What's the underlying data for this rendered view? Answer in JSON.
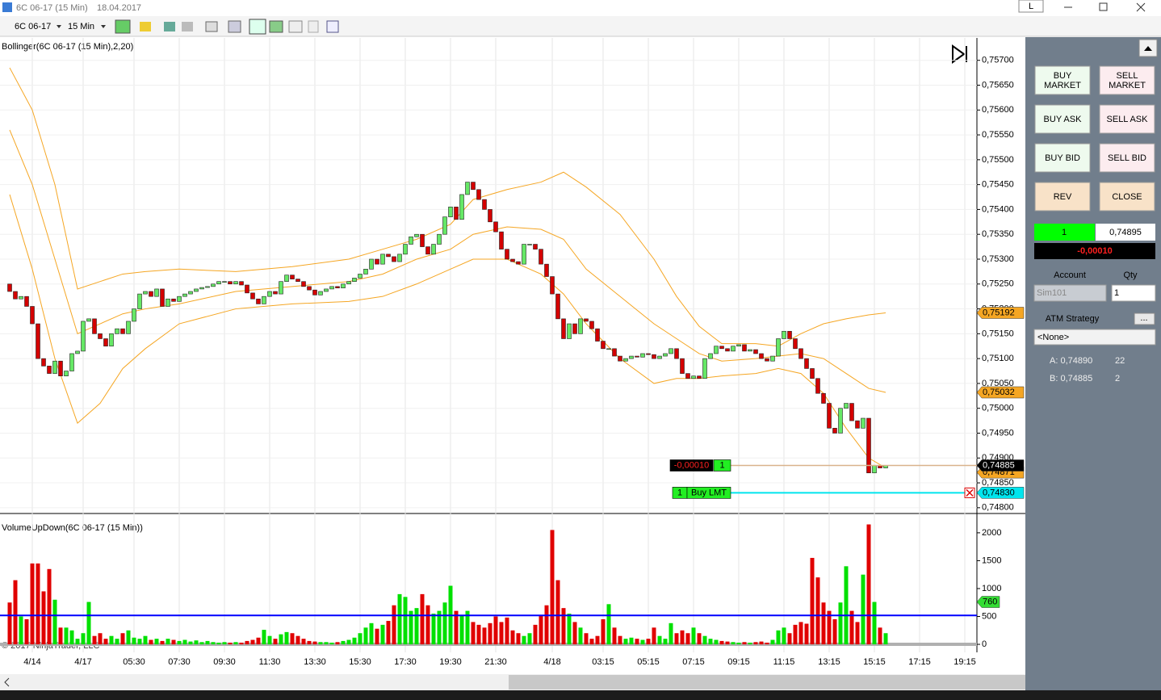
{
  "window": {
    "title": "6C 06-17 (15 Min)",
    "date": "18.04.2017",
    "badge": "L"
  },
  "toolbar": {
    "instrument": "6C 06-17",
    "interval": "15 Min"
  },
  "chart_data": [
    {
      "type": "candlestick",
      "title": "Bollinger(6C 06-17 (15 Min),2,20)",
      "open": [
        0.7525,
        0.75235,
        0.7522,
        0.75225,
        0.75205,
        0.7517,
        0.751,
        0.75085,
        0.7507,
        0.75095,
        0.75065,
        0.75075,
        0.7511,
        0.75115,
        0.75175,
        0.7518,
        0.7515,
        0.7514,
        0.75125,
        0.7515,
        0.7516,
        0.7515,
        0.75175,
        0.752,
        0.7523,
        0.75235,
        0.75225,
        0.7524,
        0.75205,
        0.7522,
        0.75215,
        0.75225,
        0.7523,
        0.75235,
        0.7524,
        0.75243,
        0.75245,
        0.7525,
        0.75255,
        0.75255,
        0.7525,
        0.75255,
        0.75248,
        0.75232,
        0.7522,
        0.7521,
        0.75225,
        0.75235,
        0.7523,
        0.75255,
        0.75268,
        0.7526,
        0.75255,
        0.75245,
        0.75238,
        0.75228,
        0.75235,
        0.7524,
        0.75245,
        0.75242,
        0.7525,
        0.75255,
        0.75262,
        0.7527,
        0.7528,
        0.753,
        0.7529,
        0.7531,
        0.75305,
        0.75295,
        0.7531,
        0.7533,
        0.75345,
        0.7535,
        0.75325,
        0.7531,
        0.7533,
        0.7535,
        0.75385,
        0.75405,
        0.7538,
        0.7543,
        0.75455,
        0.7544,
        0.7542,
        0.754,
        0.75375,
        0.75355,
        0.7532,
        0.753,
        0.75295,
        0.7529,
        0.7533,
        0.7533,
        0.7532,
        0.7529,
        0.75265,
        0.7523,
        0.7518,
        0.7514,
        0.7517,
        0.7515,
        0.7518,
        0.75175,
        0.7516,
        0.75135,
        0.7512,
        0.7512,
        0.75105,
        0.75095,
        0.751,
        0.75105,
        0.75103,
        0.7511,
        0.75108,
        0.751,
        0.75105,
        0.7511,
        0.7512,
        0.751,
        0.7507,
        0.7506,
        0.75065,
        0.7506,
        0.751,
        0.7511,
        0.75125,
        0.7512,
        0.75115,
        0.75125,
        0.75128,
        0.75115,
        0.75118,
        0.7511,
        0.751,
        0.75095,
        0.75105,
        0.7514,
        0.75155,
        0.7514,
        0.7512,
        0.751,
        0.7508,
        0.7506,
        0.7503,
        0.7501,
        0.7496,
        0.7495,
        0.75,
        0.7501,
        0.74975,
        0.7496,
        0.7498,
        0.7487,
        0.74885,
        0.7488
      ],
      "close": [
        0.75235,
        0.7522,
        0.75225,
        0.75205,
        0.7517,
        0.751,
        0.75085,
        0.7507,
        0.75095,
        0.75065,
        0.75075,
        0.7511,
        0.75115,
        0.75175,
        0.7518,
        0.7515,
        0.7514,
        0.75125,
        0.7515,
        0.7516,
        0.7515,
        0.75175,
        0.752,
        0.7523,
        0.75235,
        0.75225,
        0.7524,
        0.75205,
        0.7522,
        0.75215,
        0.75225,
        0.7523,
        0.75235,
        0.7524,
        0.75243,
        0.75245,
        0.7525,
        0.75255,
        0.75255,
        0.7525,
        0.75255,
        0.75248,
        0.75232,
        0.7522,
        0.7521,
        0.75225,
        0.75235,
        0.7523,
        0.75255,
        0.75268,
        0.7526,
        0.75255,
        0.75245,
        0.75238,
        0.75228,
        0.75235,
        0.7524,
        0.75245,
        0.75242,
        0.7525,
        0.75255,
        0.75262,
        0.7527,
        0.7528,
        0.753,
        0.7529,
        0.7531,
        0.75305,
        0.75295,
        0.7531,
        0.7533,
        0.75345,
        0.7535,
        0.75325,
        0.7531,
        0.7533,
        0.7535,
        0.75385,
        0.75405,
        0.7538,
        0.7543,
        0.75455,
        0.7544,
        0.7542,
        0.754,
        0.75375,
        0.75355,
        0.7532,
        0.753,
        0.75295,
        0.7529,
        0.7533,
        0.7533,
        0.7532,
        0.7529,
        0.75265,
        0.7523,
        0.7518,
        0.7514,
        0.7517,
        0.7515,
        0.7518,
        0.75175,
        0.7516,
        0.75135,
        0.7512,
        0.7512,
        0.75105,
        0.75095,
        0.751,
        0.75105,
        0.75103,
        0.7511,
        0.75108,
        0.751,
        0.75105,
        0.7511,
        0.7512,
        0.751,
        0.7507,
        0.7506,
        0.75065,
        0.7506,
        0.751,
        0.7511,
        0.75125,
        0.7512,
        0.75115,
        0.75125,
        0.75128,
        0.75115,
        0.75118,
        0.7511,
        0.751,
        0.75095,
        0.75105,
        0.7514,
        0.75155,
        0.7514,
        0.7512,
        0.751,
        0.7508,
        0.7506,
        0.7503,
        0.7501,
        0.7496,
        0.7495,
        0.75,
        0.7501,
        0.74975,
        0.7496,
        0.7498,
        0.7487,
        0.74885,
        0.7488,
        0.74885
      ],
      "up_color": "#66e866",
      "down_color": "#d40000",
      "ylim": [
        0.7479,
        0.75745
      ],
      "yticks": [
        {
          "value": 0.748,
          "label": "0,74800"
        },
        {
          "value": 0.7485,
          "label": "0,74850"
        },
        {
          "value": 0.749,
          "label": "0,74900"
        },
        {
          "value": 0.7495,
          "label": "0,74950"
        },
        {
          "value": 0.75,
          "label": "0,75000"
        },
        {
          "value": 0.7505,
          "label": "0,75050"
        },
        {
          "value": 0.751,
          "label": "0,75100"
        },
        {
          "value": 0.7515,
          "label": "0,75150"
        },
        {
          "value": 0.752,
          "label": "0,75200"
        },
        {
          "value": 0.7525,
          "label": "0,75250"
        },
        {
          "value": 0.753,
          "label": "0,75300"
        },
        {
          "value": 0.7535,
          "label": "0,75350"
        },
        {
          "value": 0.754,
          "label": "0,75400"
        },
        {
          "value": 0.7545,
          "label": "0,75450"
        },
        {
          "value": 0.755,
          "label": "0,75500"
        },
        {
          "value": 0.7555,
          "label": "0,75550"
        },
        {
          "value": 0.756,
          "label": "0,75600"
        },
        {
          "value": 0.7565,
          "label": "0,75650"
        },
        {
          "value": 0.757,
          "label": "0,75700"
        }
      ],
      "xticks": [
        {
          "value": 4,
          "label": "4/14"
        },
        {
          "value": 13,
          "label": "4/17"
        },
        {
          "value": 22,
          "label": "05:30"
        },
        {
          "value": 30,
          "label": "07:30"
        },
        {
          "value": 38,
          "label": "09:30"
        },
        {
          "value": 46,
          "label": "11:30"
        },
        {
          "value": 54,
          "label": "13:30"
        },
        {
          "value": 62,
          "label": "15:30"
        },
        {
          "value": 70,
          "label": "17:30"
        },
        {
          "value": 78,
          "label": "19:30"
        },
        {
          "value": 86,
          "label": "21:30"
        },
        {
          "value": 96,
          "label": "4/18"
        },
        {
          "value": 105,
          "label": "03:15"
        },
        {
          "value": 113,
          "label": "05:15"
        },
        {
          "value": 121,
          "label": "07:15"
        },
        {
          "value": 129,
          "label": "09:15"
        },
        {
          "value": 137,
          "label": "11:15"
        },
        {
          "value": 145,
          "label": "13:15"
        },
        {
          "value": 153,
          "label": "15:15"
        },
        {
          "value": 161,
          "label": "17:15"
        },
        {
          "value": 169,
          "label": "19:15"
        }
      ],
      "bands": [
        {
          "color": "#f5a623",
          "x": [
            0,
            4,
            8,
            12,
            16,
            20,
            24,
            30,
            40,
            50,
            60,
            66,
            72,
            78,
            82,
            88,
            94,
            98,
            102,
            108,
            114,
            118,
            122,
            126,
            132,
            136,
            140,
            144,
            148,
            152,
            155
          ],
          "values": [
            0.75685,
            0.756,
            0.7545,
            0.7524,
            0.75255,
            0.7527,
            0.75275,
            0.7528,
            0.75275,
            0.75285,
            0.753,
            0.7532,
            0.7534,
            0.7537,
            0.7542,
            0.7544,
            0.75455,
            0.75475,
            0.75445,
            0.7539,
            0.753,
            0.75225,
            0.75165,
            0.7513,
            0.7513,
            0.75125,
            0.7515,
            0.7517,
            0.7518,
            0.75188,
            0.75192
          ]
        },
        {
          "color": "#f5a623",
          "x": [
            0,
            4,
            8,
            12,
            16,
            20,
            24,
            30,
            40,
            50,
            60,
            66,
            72,
            78,
            82,
            88,
            94,
            98,
            102,
            108,
            114,
            118,
            122,
            126,
            132,
            136,
            140,
            144,
            148,
            152,
            155
          ],
          "values": [
            0.7556,
            0.7545,
            0.753,
            0.7515,
            0.7517,
            0.7519,
            0.752,
            0.7521,
            0.75235,
            0.75245,
            0.75255,
            0.7527,
            0.753,
            0.7532,
            0.7535,
            0.75365,
            0.7536,
            0.7534,
            0.7528,
            0.75225,
            0.7517,
            0.7514,
            0.7511,
            0.75095,
            0.751,
            0.75105,
            0.7511,
            0.751,
            0.7507,
            0.7504,
            0.75032
          ]
        },
        {
          "color": "#f5a623",
          "x": [
            0,
            4,
            8,
            12,
            16,
            20,
            24,
            30,
            40,
            50,
            60,
            66,
            72,
            78,
            82,
            88,
            94,
            98,
            102,
            108,
            114,
            118,
            122,
            126,
            132,
            136,
            140,
            144,
            148,
            152,
            155
          ],
          "values": [
            0.7543,
            0.7528,
            0.751,
            0.7497,
            0.7501,
            0.7508,
            0.7512,
            0.7517,
            0.752,
            0.7521,
            0.75215,
            0.75225,
            0.7525,
            0.7528,
            0.753,
            0.753,
            0.7527,
            0.7523,
            0.7517,
            0.751,
            0.7505,
            0.7506,
            0.7506,
            0.75065,
            0.7507,
            0.7508,
            0.7507,
            0.7503,
            0.7496,
            0.749,
            0.7488
          ]
        }
      ],
      "lines": [
        {
          "value": 0.74885,
          "color": "#d9b38c",
          "labels": [
            "-0,00010",
            "1"
          ]
        },
        {
          "value": 0.7483,
          "color": "#00e5ee",
          "labels": [
            "1",
            "Buy LMT"
          ]
        }
      ],
      "tags": [
        {
          "value": 0.75192,
          "label": "0,75192",
          "color": "#f5a623"
        },
        {
          "value": 0.75032,
          "label": "0,75032",
          "color": "#f5a623"
        },
        {
          "value": 0.74871,
          "label": "0,74871",
          "color": "#f5a623"
        },
        {
          "value": 0.74885,
          "label": "0,74885",
          "color": "#000000"
        },
        {
          "value": 0.7483,
          "label": "0,74830",
          "color": "#00e5ee"
        }
      ]
    },
    {
      "type": "bar",
      "title": "VolumeUpDown(6C 06-17 (15 Min))",
      "copyright": "© 2017 NinjaTrader, LLC",
      "values": [
        750,
        1150,
        500,
        450,
        1450,
        1450,
        950,
        1350,
        800,
        300,
        300,
        250,
        100,
        200,
        760,
        150,
        200,
        100,
        150,
        100,
        200,
        250,
        120,
        100,
        150,
        80,
        100,
        60,
        100,
        80,
        60,
        80,
        50,
        70,
        40,
        60,
        40,
        30,
        40,
        30,
        40,
        30,
        60,
        80,
        120,
        260,
        150,
        100,
        180,
        220,
        200,
        150,
        100,
        60,
        50,
        40,
        40,
        30,
        40,
        60,
        80,
        120,
        200,
        300,
        380,
        280,
        350,
        420,
        700,
        900,
        850,
        600,
        650,
        900,
        700,
        550,
        600,
        750,
        1050,
        600,
        520,
        600,
        400,
        350,
        300,
        380,
        500,
        400,
        480,
        250,
        200,
        150,
        200,
        350,
        520,
        700,
        2050,
        1150,
        650,
        550,
        400,
        300,
        200,
        100,
        150,
        450,
        720,
        300,
        150,
        100,
        120,
        100,
        80,
        100,
        300,
        150,
        100,
        380,
        200,
        250,
        200,
        300,
        200,
        150,
        100,
        80,
        60,
        50,
        40,
        30,
        40,
        30,
        40,
        50,
        30,
        80,
        250,
        300,
        200,
        350,
        400,
        370,
        1550,
        1200,
        750,
        600,
        450,
        750,
        1400,
        600,
        400,
        1250,
        2150,
        760,
        300,
        200
      ],
      "up_color": "#00e000",
      "down_color": "#e00000",
      "ylim": [
        -144,
        2317
      ],
      "yticks": [
        0,
        500,
        1000,
        1500,
        2000
      ],
      "reference_line": {
        "value": 518,
        "color": "#0000ff"
      },
      "tag": {
        "value": 760,
        "color": "#33dd33"
      }
    }
  ],
  "panel": {
    "buttons": [
      [
        "BUY\nMARKET",
        "SELL\nMARKET"
      ],
      [
        "BUY ASK",
        "SELL ASK"
      ],
      [
        "BUY BID",
        "SELL BID"
      ],
      [
        "REV",
        "CLOSE"
      ]
    ],
    "position_qty": "1",
    "position_price": "0,74895",
    "pnl": "-0,00010",
    "account_label": "Account",
    "qty_label": "Qty",
    "account": "Sim101",
    "qty": "1",
    "atm_label": "ATM Strategy",
    "atm_button": "...",
    "atm": "<None>",
    "ask_label": "A: 0,74890",
    "ask_size": "22",
    "bid_label": "B: 0,74885",
    "bid_size": "2"
  }
}
